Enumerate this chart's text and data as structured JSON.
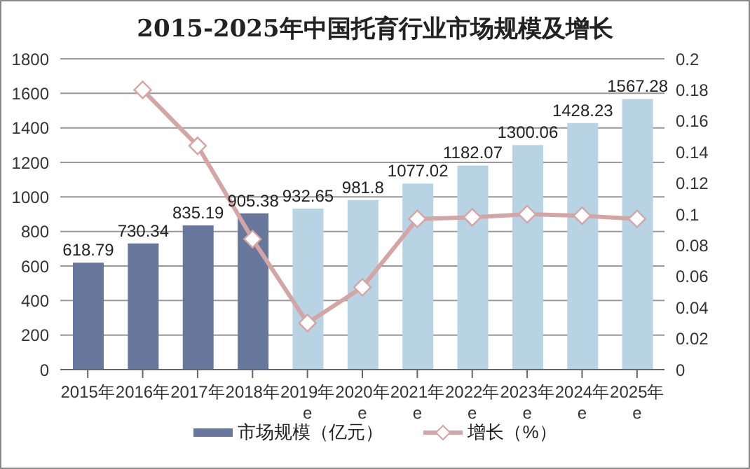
{
  "chart_data": {
    "type": "bar",
    "title": "2015-2025年中国托育行业市场规模及增长",
    "categories": [
      "2015年",
      "2016年",
      "2017年",
      "2018年",
      "2019年\ne",
      "2020年\ne",
      "2021年\ne",
      "2022年\ne",
      "2023年\ne",
      "2024年\ne",
      "2025年\ne"
    ],
    "series": [
      {
        "name": "市场规模（亿元）",
        "color": "#68789c",
        "colors": [
          "#68789c",
          "#68789c",
          "#68789c",
          "#68789c",
          "#b7d3e4",
          "#b7d3e4",
          "#b7d3e4",
          "#b7d3e4",
          "#b7d3e4",
          "#b7d3e4",
          "#b7d3e4"
        ],
        "values": [
          618.79,
          730.34,
          835.19,
          905.38,
          932.65,
          981.8,
          1077.02,
          1182.07,
          1300.06,
          1428.23,
          1567.28
        ],
        "data_labels": true
      },
      {
        "name": "增长（%）",
        "type": "line",
        "axis": "y2",
        "color": "#d4a5a5",
        "marker": "diamond",
        "values": [
          null,
          0.18,
          0.144,
          0.084,
          0.03,
          0.053,
          0.097,
          0.098,
          0.1,
          0.099,
          0.097
        ]
      }
    ],
    "ylim": [
      0,
      1800
    ],
    "yticks": [
      0,
      200,
      400,
      600,
      800,
      1000,
      1200,
      1400,
      1600,
      1800
    ],
    "y2lim": [
      0,
      0.2
    ],
    "y2ticks": [
      0,
      0.02,
      0.04,
      0.06,
      0.08,
      0.1,
      0.12,
      0.14,
      0.16,
      0.18,
      0.2
    ],
    "grid": "y",
    "legend": "bottom"
  }
}
